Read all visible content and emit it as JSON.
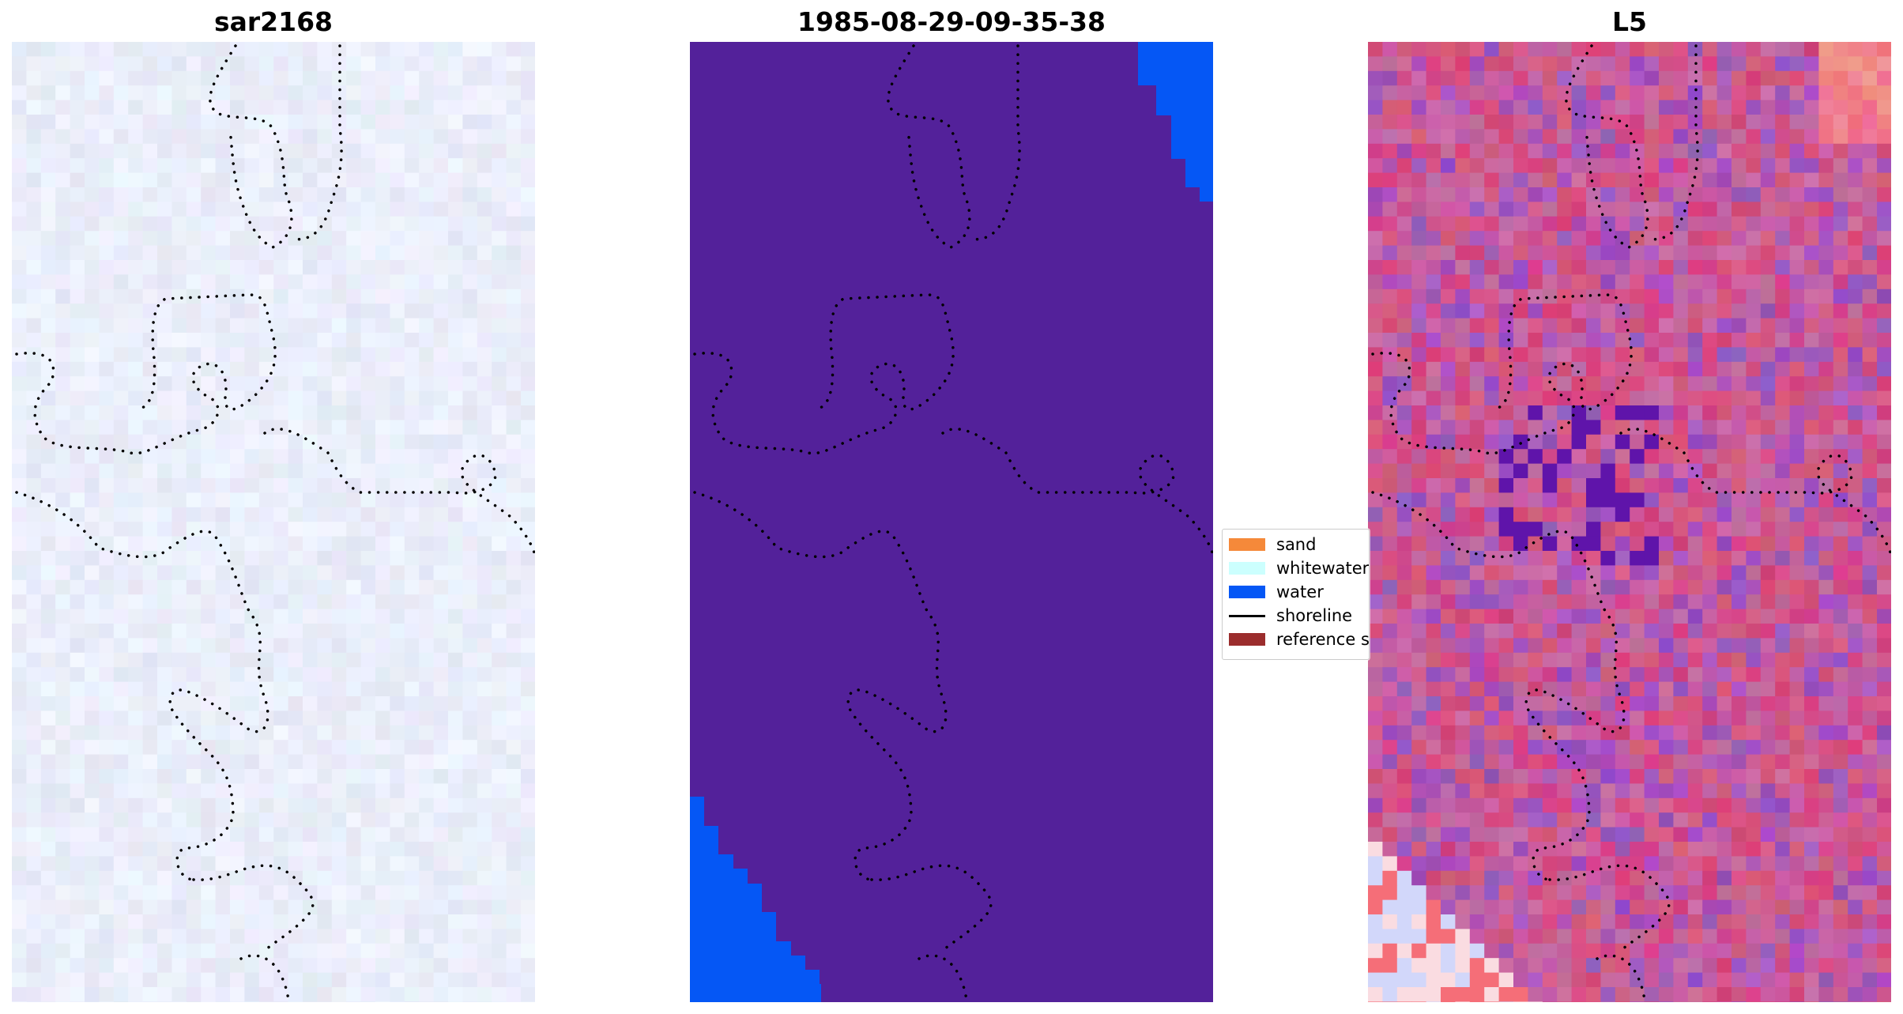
{
  "panels": {
    "left": {
      "title": "sar2168"
    },
    "middle": {
      "title": "1985-08-29-09-35-38"
    },
    "right": {
      "title": "L5"
    }
  },
  "legend": {
    "items": [
      {
        "label": "sand",
        "color": "#f5893a",
        "kind": "patch"
      },
      {
        "label": "whitewater",
        "color": "#ccfffe",
        "kind": "patch"
      },
      {
        "label": "water",
        "color": "#0557f5",
        "kind": "patch"
      },
      {
        "label": "shoreline",
        "color": "#000000",
        "kind": "line"
      },
      {
        "label": "reference s",
        "color": "#9b2d2d",
        "kind": "patch"
      }
    ]
  },
  "colors": {
    "classified_land": "#53219a",
    "classified_water": "#0557f5",
    "shoreline": "#000000"
  }
}
